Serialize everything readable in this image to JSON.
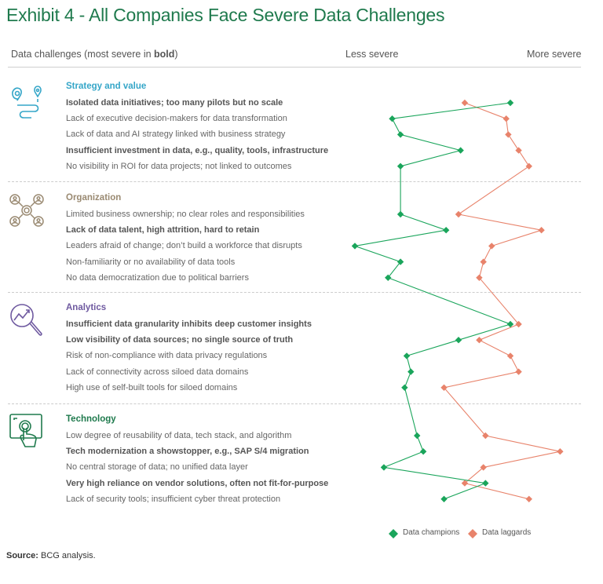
{
  "title": "Exhibit 4 - All Companies Face Severe Data Challenges",
  "header": {
    "challenges_label": "Data challenges (most severe in ",
    "challenges_bold": "bold",
    "challenges_close": ")",
    "less_severe": "Less severe",
    "more_severe": "More severe"
  },
  "sections": [
    {
      "title": "Strategy and value",
      "color": "#35a6c8",
      "icon": "map-pin-route-icon"
    },
    {
      "title": "Organization",
      "color": "#9a8a72",
      "icon": "people-network-icon"
    },
    {
      "title": "Analytics",
      "color": "#6f5aa0",
      "icon": "analytics-magnifier-icon"
    },
    {
      "title": "Technology",
      "color": "#1f7a4d",
      "icon": "touch-screen-icon"
    }
  ],
  "colors": {
    "champions": "#1aa55b",
    "laggards": "#e8836b",
    "title": "#1f7a4d"
  },
  "chart_data": {
    "type": "line",
    "axis": {
      "left_label": "Less severe",
      "right_label": "More severe",
      "min": 0,
      "max": 1
    },
    "categories": [
      {
        "section": 0,
        "label": "Isolated data initiatives; too many pilots but no scale",
        "bold": true
      },
      {
        "section": 0,
        "label": "Lack of executive decision-makers for data transformation",
        "bold": false
      },
      {
        "section": 0,
        "label": "Lack of data and AI strategy linked with business strategy",
        "bold": false
      },
      {
        "section": 0,
        "label": "Insufficient investment in data, e.g., quality, tools, infrastructure",
        "bold": true
      },
      {
        "section": 0,
        "label": "No visibility in ROI for data projects; not linked to outcomes",
        "bold": false
      },
      {
        "section": 1,
        "label": "Limited business ownership; no clear roles and responsibilities",
        "bold": false
      },
      {
        "section": 1,
        "label": "Lack of data talent, high attrition, hard to retain",
        "bold": true
      },
      {
        "section": 1,
        "label": "Leaders afraid of change; don’t build a workforce that disrupts",
        "bold": false
      },
      {
        "section": 1,
        "label": "Non-familiarity or no availability of data tools",
        "bold": false
      },
      {
        "section": 1,
        "label": "No data democratization due to political barriers",
        "bold": false
      },
      {
        "section": 2,
        "label": "Insufficient data granularity inhibits deep customer insights",
        "bold": true
      },
      {
        "section": 2,
        "label": "Low visibility of data sources; no single source of truth",
        "bold": true
      },
      {
        "section": 2,
        "label": "Risk of non-compliance with data privacy regulations",
        "bold": false
      },
      {
        "section": 2,
        "label": "Lack of connectivity across siloed data domains",
        "bold": false
      },
      {
        "section": 2,
        "label": "High use of self-built tools for siloed domains",
        "bold": false
      },
      {
        "section": 3,
        "label": "Low degree of reusability of data, tech stack, and algorithm",
        "bold": false
      },
      {
        "section": 3,
        "label": "Tech modernization a showstopper, e.g., SAP S/4 migration",
        "bold": true
      },
      {
        "section": 3,
        "label": "No central storage of data; no unified data layer",
        "bold": false
      },
      {
        "section": 3,
        "label": "Very high reliance on vendor solutions, often not fit-for-purpose",
        "bold": true
      },
      {
        "section": 3,
        "label": "Lack of security tools; insufficient cyber threat protection",
        "bold": false
      }
    ],
    "series": [
      {
        "name": "Data champions",
        "values": [
          0.75,
          0.18,
          0.22,
          0.51,
          0.22,
          0.22,
          0.44,
          0.0,
          0.22,
          0.16,
          0.75,
          0.5,
          0.25,
          0.27,
          0.24,
          0.3,
          0.33,
          0.14,
          0.63,
          0.43
        ]
      },
      {
        "name": "Data laggards",
        "values": [
          0.53,
          0.73,
          0.74,
          0.79,
          0.84,
          0.5,
          0.9,
          0.66,
          0.62,
          0.6,
          0.79,
          0.6,
          0.75,
          0.79,
          0.43,
          0.63,
          0.99,
          0.62,
          0.53,
          0.84
        ]
      }
    ]
  },
  "legend": {
    "champions": "Data champions",
    "laggards": "Data laggards"
  },
  "source": {
    "label": "Source:",
    "text": " BCG analysis."
  }
}
